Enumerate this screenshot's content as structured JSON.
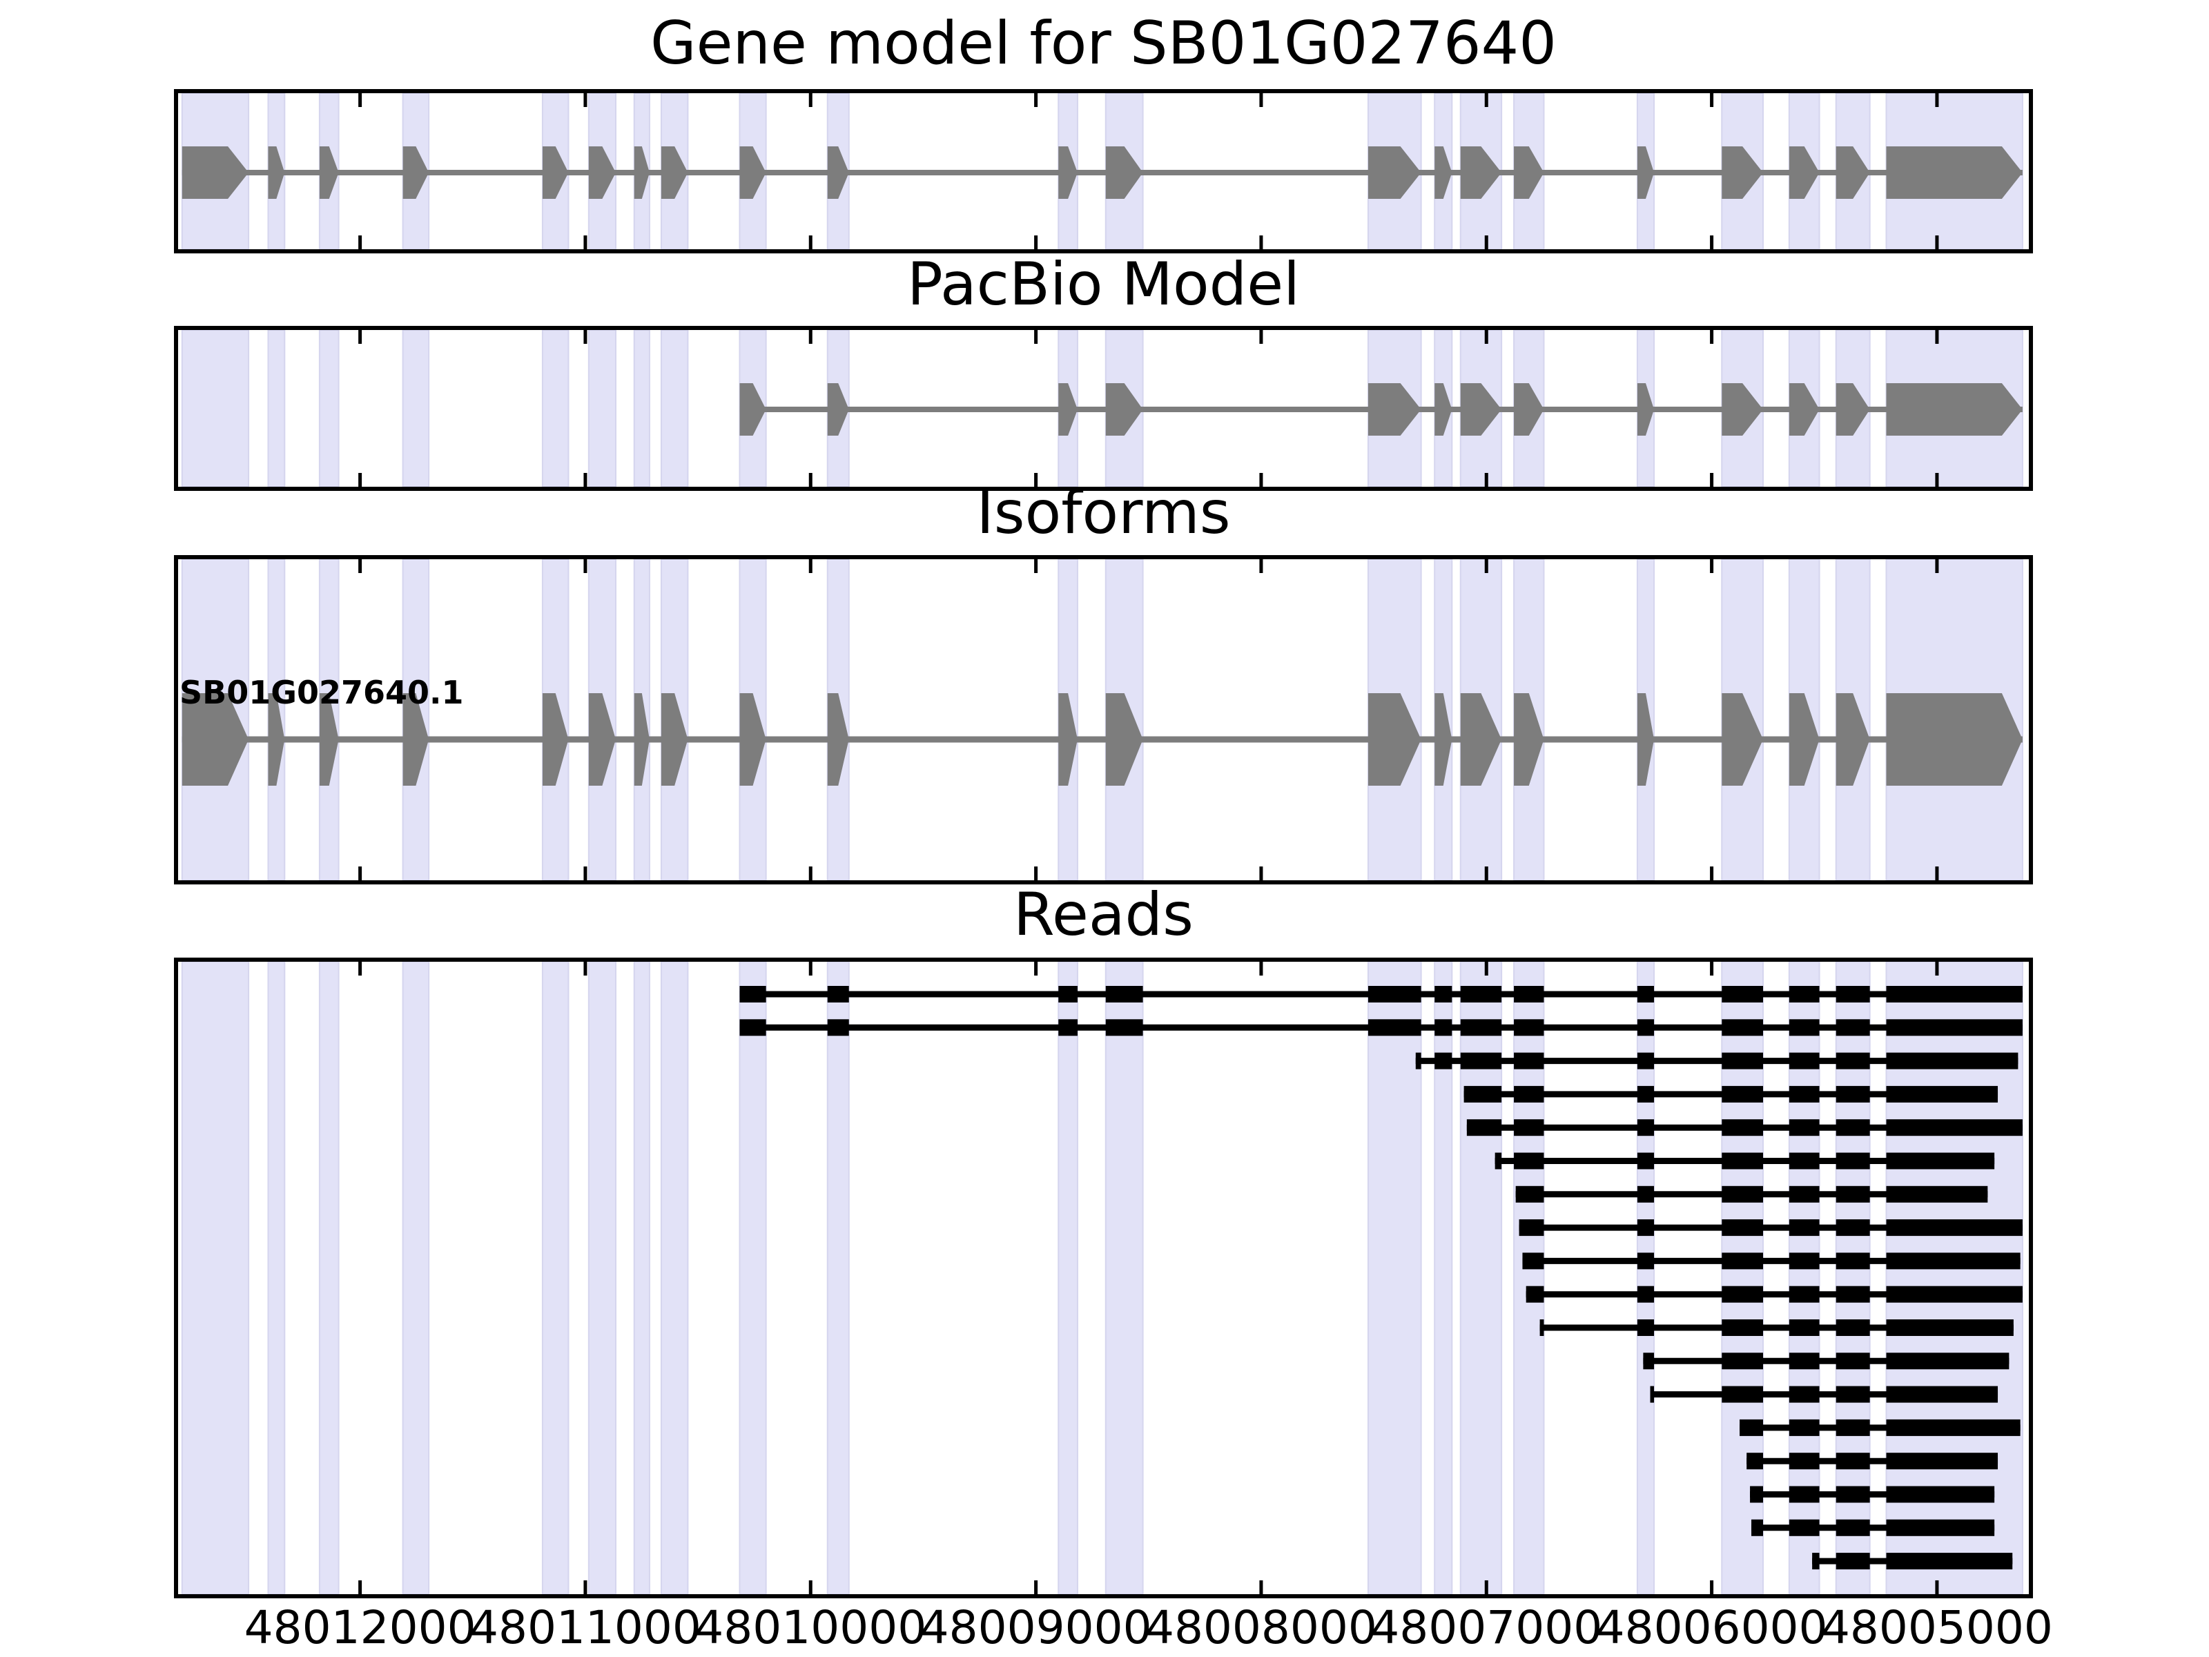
{
  "figure": {
    "titles": {
      "gene": "Gene model for SB01G027640",
      "pacbio": "PacBio Model",
      "isoforms": "Isoforms",
      "reads": "Reads"
    },
    "isoform_label": "SB01G027640.1"
  },
  "chart_data": {
    "type": "gene-model-tracks",
    "title": "Gene model for SB01G027640",
    "panel_titles": [
      "Gene model for SB01G027640",
      "PacBio Model",
      "Isoforms",
      "Reads"
    ],
    "x_axis": {
      "direction": "decreasing",
      "left_value": 48012817,
      "right_value": 48004583,
      "tick_values": [
        48012000,
        48011000,
        48010000,
        48009000,
        48008000,
        48007000,
        48006000,
        48005000
      ],
      "tick_labels": [
        "48012000",
        "48011000",
        "48010000",
        "48009000",
        "48008000",
        "48007000",
        "48006000",
        "48005000"
      ]
    },
    "exon_chains": {
      "gene": [
        [
          48012790,
          48012495
        ],
        [
          48012408,
          48012335
        ],
        [
          48012180,
          48012095
        ],
        [
          48011810,
          48011695
        ],
        [
          48011190,
          48011075
        ],
        [
          48010985,
          48010865
        ],
        [
          48010783,
          48010715
        ],
        [
          48010663,
          48010545
        ],
        [
          48010315,
          48010198
        ],
        [
          48009925,
          48009830
        ],
        [
          48008900,
          48008815
        ],
        [
          48008690,
          48008525
        ],
        [
          48007525,
          48007290
        ],
        [
          48007230,
          48007153
        ],
        [
          48007115,
          48006933
        ],
        [
          48006878,
          48006745
        ],
        [
          48006330,
          48006256
        ],
        [
          48005955,
          48005772
        ],
        [
          48005656,
          48005522
        ],
        [
          48005448,
          48005298
        ],
        [
          48005225,
          48004620
        ]
      ],
      "pacbio": [
        [
          48010315,
          48010198
        ],
        [
          48009925,
          48009830
        ],
        [
          48008900,
          48008815
        ],
        [
          48008690,
          48008525
        ],
        [
          48007525,
          48007290
        ],
        [
          48007230,
          48007153
        ],
        [
          48007115,
          48006933
        ],
        [
          48006878,
          48006745
        ],
        [
          48006330,
          48006256
        ],
        [
          48005955,
          48005772
        ],
        [
          48005656,
          48005522
        ],
        [
          48005448,
          48005298
        ],
        [
          48005225,
          48004620
        ]
      ]
    },
    "tracks": {
      "gene_model": {
        "chain": "gene"
      },
      "pacbio_model": {
        "chain": "pacbio"
      },
      "isoforms": [
        {
          "label": "SB01G027640.1",
          "chain": "gene"
        }
      ]
    },
    "reads": [
      {
        "start": 48010315,
        "end": 48004620
      },
      {
        "start": 48010315,
        "end": 48004620
      },
      {
        "start": 48007314,
        "end": 48004640
      },
      {
        "start": 48007100,
        "end": 48004730
      },
      {
        "start": 48007087,
        "end": 48004620
      },
      {
        "start": 48006962,
        "end": 48004745
      },
      {
        "start": 48006870,
        "end": 48004775
      },
      {
        "start": 48006855,
        "end": 48004620
      },
      {
        "start": 48006840,
        "end": 48004630
      },
      {
        "start": 48006824,
        "end": 48004620
      },
      {
        "start": 48006763,
        "end": 48004660
      },
      {
        "start": 48006304,
        "end": 48004680
      },
      {
        "start": 48006273,
        "end": 48004730
      },
      {
        "start": 48005876,
        "end": 48004630
      },
      {
        "start": 48005845,
        "end": 48004730
      },
      {
        "start": 48005830,
        "end": 48004745
      },
      {
        "start": 48005824,
        "end": 48004745
      },
      {
        "start": 48005554,
        "end": 48004665
      }
    ],
    "highlight_bands_follow": "gene",
    "colors": {
      "exon_fill": "#7d7d7d",
      "model_line": "#7d7d7d",
      "read_fill": "#000000",
      "highlight_fill": "#e2e2f7",
      "highlight_edge": "#d5d5ee",
      "panel_border": "#000000",
      "background": "#ffffff",
      "text": "#000000"
    }
  }
}
